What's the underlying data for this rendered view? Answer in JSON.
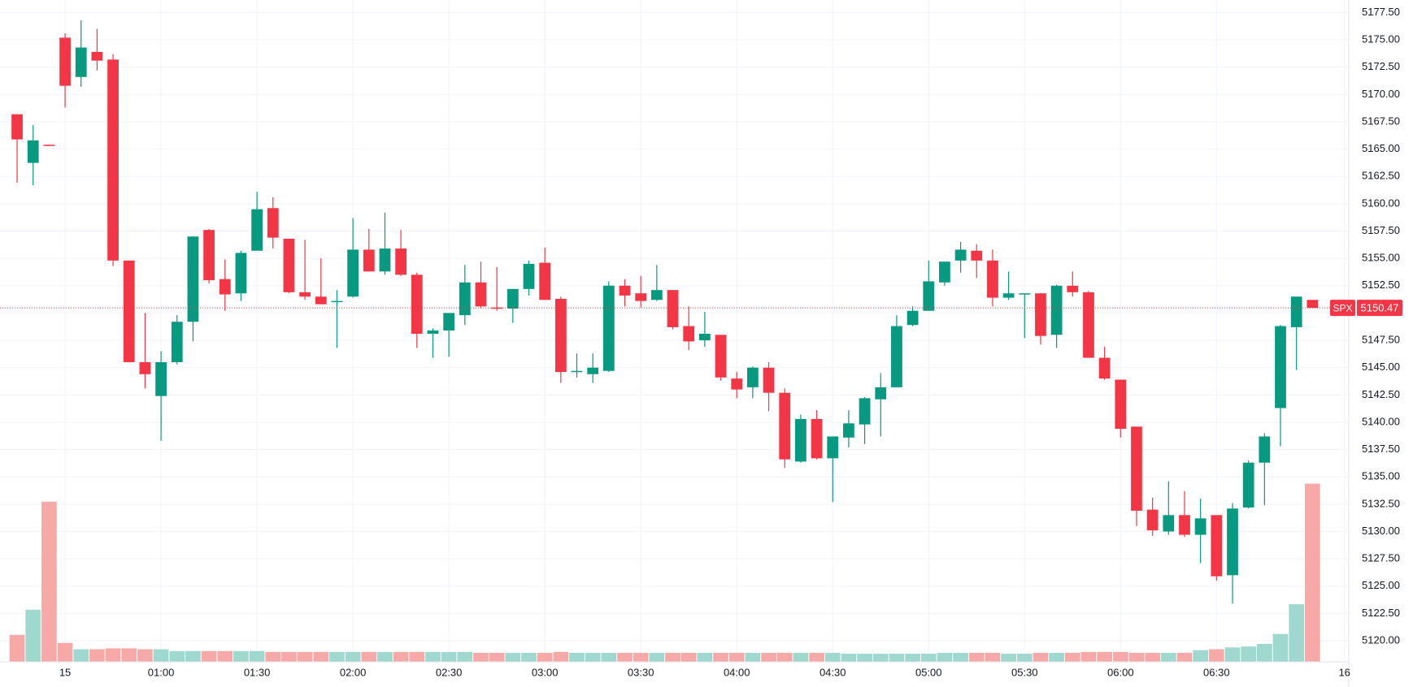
{
  "chart_data": {
    "type": "candlestick",
    "symbol": "SPX",
    "last_price": 5150.47,
    "up_color": "#089981",
    "down_color": "#f23645",
    "volume_up_color": "#9fd8cf",
    "volume_down_color": "#f7a9a7",
    "grid": true,
    "xlim": [
      -1.07,
      83.27
    ],
    "xticks": [
      {
        "value": 3,
        "label": "15"
      },
      {
        "value": 9,
        "label": "01:00"
      },
      {
        "value": 15,
        "label": "01:30"
      },
      {
        "value": 21,
        "label": "02:00"
      },
      {
        "value": 27,
        "label": "02:30"
      },
      {
        "value": 33,
        "label": "03:00"
      },
      {
        "value": 39,
        "label": "03:30"
      },
      {
        "value": 45,
        "label": "04:00"
      },
      {
        "value": 51,
        "label": "04:30"
      },
      {
        "value": 57,
        "label": "05:00"
      },
      {
        "value": 63,
        "label": "05:30"
      },
      {
        "value": 69,
        "label": "06:00"
      },
      {
        "value": 75,
        "label": "06:30"
      },
      {
        "value": 83,
        "label": "16"
      }
    ],
    "ylim": [
      5118.07,
      5178.65
    ],
    "yticks": [
      {
        "value": 5120,
        "label": "5120.00"
      },
      {
        "value": 5122.5,
        "label": "5122.50"
      },
      {
        "value": 5125,
        "label": "5125.00"
      },
      {
        "value": 5127.5,
        "label": "5127.50"
      },
      {
        "value": 5130,
        "label": "5130.00"
      },
      {
        "value": 5132.5,
        "label": "5132.50"
      },
      {
        "value": 5135,
        "label": "5135.00"
      },
      {
        "value": 5137.5,
        "label": "5137.50"
      },
      {
        "value": 5140,
        "label": "5140.00"
      },
      {
        "value": 5142.5,
        "label": "5142.50"
      },
      {
        "value": 5145,
        "label": "5145.00"
      },
      {
        "value": 5147.5,
        "label": "5147.50"
      },
      {
        "value": 5150,
        "label": "5150.00"
      },
      {
        "value": 5152.5,
        "label": "5152.50"
      },
      {
        "value": 5155,
        "label": "5155.00"
      },
      {
        "value": 5157.5,
        "label": "5157.50"
      },
      {
        "value": 5160,
        "label": "5160.00"
      },
      {
        "value": 5162.5,
        "label": "5162.50"
      },
      {
        "value": 5165,
        "label": "5165.00"
      },
      {
        "value": 5167.5,
        "label": "5167.50"
      },
      {
        "value": 5170,
        "label": "5170.00"
      },
      {
        "value": 5172.5,
        "label": "5172.50"
      },
      {
        "value": 5175,
        "label": "5175.00"
      },
      {
        "value": 5177.5,
        "label": "5177.50"
      }
    ],
    "open": [
      5168.19,
      5163.74,
      5165.4,
      5175.2,
      5171.6,
      5173.9,
      5173.2,
      5154.8,
      5145.5,
      5142.4,
      5145.5,
      5149.2,
      5157.6,
      5153.1,
      5151.8,
      5155.7,
      5159.6,
      5156.8,
      5151.9,
      5151.5,
      5151.0,
      5151.5,
      5155.8,
      5153.8,
      5155.9,
      5153.5,
      5148.1,
      5148.4,
      5149.8,
      5152.8,
      5150.5,
      5150.4,
      5152.2,
      5154.6,
      5151.3,
      5144.6,
      5144.4,
      5144.7,
      5152.5,
      5151.8,
      5151.2,
      5152.1,
      5148.8,
      5147.5,
      5148.0,
      5144.0,
      5143.2,
      5145.0,
      5142.7,
      5136.4,
      5140.3,
      5136.7,
      5138.6,
      5139.8,
      5142.1,
      5143.2,
      5148.9,
      5150.2,
      5152.8,
      5154.8,
      5155.7,
      5154.8,
      5151.4,
      5151.7,
      5151.8,
      5148.0,
      5152.5,
      5151.9,
      5145.9,
      5143.9,
      5139.6,
      5132.0,
      5130.0,
      5131.5,
      5129.7,
      5131.5,
      5126.0,
      5132.2,
      5136.3,
      5141.3,
      5148.7,
      5151.2
    ],
    "high": [
      5168.2,
      5167.2,
      5165.4,
      5175.6,
      5176.8,
      5176.0,
      5173.7,
      5154.8,
      5150.0,
      5146.5,
      5149.8,
      5157.0,
      5157.7,
      5154.9,
      5155.7,
      5161.1,
      5160.6,
      5156.8,
      5156.7,
      5155.0,
      5152.1,
      5158.7,
      5157.7,
      5159.2,
      5157.6,
      5153.7,
      5148.6,
      5150.0,
      5154.4,
      5154.7,
      5154.2,
      5152.2,
      5154.8,
      5156.0,
      5151.5,
      5146.3,
      5146.3,
      5152.9,
      5153.1,
      5153.4,
      5154.4,
      5152.1,
      5150.6,
      5150.1,
      5148.0,
      5144.6,
      5145.1,
      5145.5,
      5143.1,
      5140.7,
      5141.1,
      5138.7,
      5141.1,
      5142.3,
      5144.5,
      5149.8,
      5150.6,
      5154.8,
      5154.7,
      5156.5,
      5156.3,
      5155.8,
      5153.8,
      5151.8,
      5151.8,
      5152.6,
      5153.8,
      5152.0,
      5146.9,
      5143.9,
      5139.6,
      5133.1,
      5134.6,
      5133.7,
      5133.0,
      5131.5,
      5132.6,
      5136.5,
      5139.0,
      5148.9,
      5151.5,
      5151.2
    ],
    "low": [
      5161.93,
      5161.7,
      5165.3,
      5168.8,
      5170.7,
      5172.2,
      5154.3,
      5145.5,
      5143.1,
      5138.3,
      5145.3,
      5147.4,
      5152.7,
      5150.2,
      5151.1,
      5155.7,
      5155.9,
      5151.8,
      5151.2,
      5150.8,
      5146.8,
      5151.4,
      5153.8,
      5153.5,
      5153.4,
      5146.8,
      5145.9,
      5146.0,
      5148.9,
      5150.4,
      5150.2,
      5149.1,
      5151.6,
      5151.2,
      5143.6,
      5144.1,
      5143.6,
      5144.6,
      5150.6,
      5150.5,
      5151.1,
      5148.5,
      5146.6,
      5146.9,
      5143.8,
      5142.2,
      5142.2,
      5141.0,
      5135.8,
      5136.3,
      5136.6,
      5132.7,
      5137.7,
      5138.0,
      5138.7,
      5143.2,
      5148.8,
      5150.2,
      5152.5,
      5153.7,
      5153.2,
      5150.6,
      5151.2,
      5147.7,
      5147.1,
      5146.8,
      5151.5,
      5145.9,
      5143.9,
      5138.6,
      5130.5,
      5129.6,
      5129.7,
      5129.5,
      5127.1,
      5125.5,
      5123.4,
      5132.1,
      5132.4,
      5137.8,
      5144.8,
      5150.47
    ],
    "close": [
      5165.89,
      5165.8,
      5165.3,
      5170.8,
      5174.3,
      5173.1,
      5154.8,
      5145.5,
      5144.4,
      5145.5,
      5149.2,
      5157.0,
      5153.0,
      5151.7,
      5155.5,
      5159.5,
      5156.9,
      5151.9,
      5151.5,
      5150.8,
      5151.1,
      5155.8,
      5153.8,
      5155.9,
      5153.5,
      5148.1,
      5148.4,
      5150.0,
      5152.8,
      5150.6,
      5150.4,
      5152.2,
      5154.5,
      5151.2,
      5144.6,
      5144.7,
      5145.0,
      5152.5,
      5151.6,
      5151.1,
      5152.1,
      5148.7,
      5147.4,
      5148.1,
      5144.1,
      5143.0,
      5145.0,
      5142.7,
      5136.6,
      5140.3,
      5136.7,
      5138.7,
      5139.9,
      5142.2,
      5143.2,
      5148.8,
      5150.2,
      5152.9,
      5154.7,
      5155.8,
      5154.8,
      5151.4,
      5151.8,
      5151.8,
      5147.9,
      5152.5,
      5151.9,
      5145.9,
      5144.0,
      5139.4,
      5131.9,
      5130.1,
      5131.5,
      5129.7,
      5131.2,
      5125.9,
      5132.1,
      5136.3,
      5138.7,
      5148.8,
      5151.5,
      5150.47
    ],
    "volume": [
      30,
      58,
      178,
      21,
      14,
      14,
      15,
      15,
      14,
      14,
      12,
      12,
      12,
      12,
      12,
      12,
      11,
      11,
      11,
      11,
      11,
      11,
      11,
      11,
      11,
      11,
      11,
      11,
      11,
      10,
      10,
      10,
      10,
      10,
      11,
      10,
      10,
      10,
      10,
      10,
      10,
      10,
      10,
      10,
      10,
      10,
      10,
      10,
      10,
      10,
      10,
      10,
      9,
      9,
      9,
      9,
      9,
      9,
      10,
      10,
      10,
      10,
      9,
      9,
      10,
      10,
      10,
      11,
      11,
      11,
      10,
      10,
      10,
      10,
      13,
      14,
      16,
      17,
      20,
      31,
      64,
      198
    ]
  }
}
